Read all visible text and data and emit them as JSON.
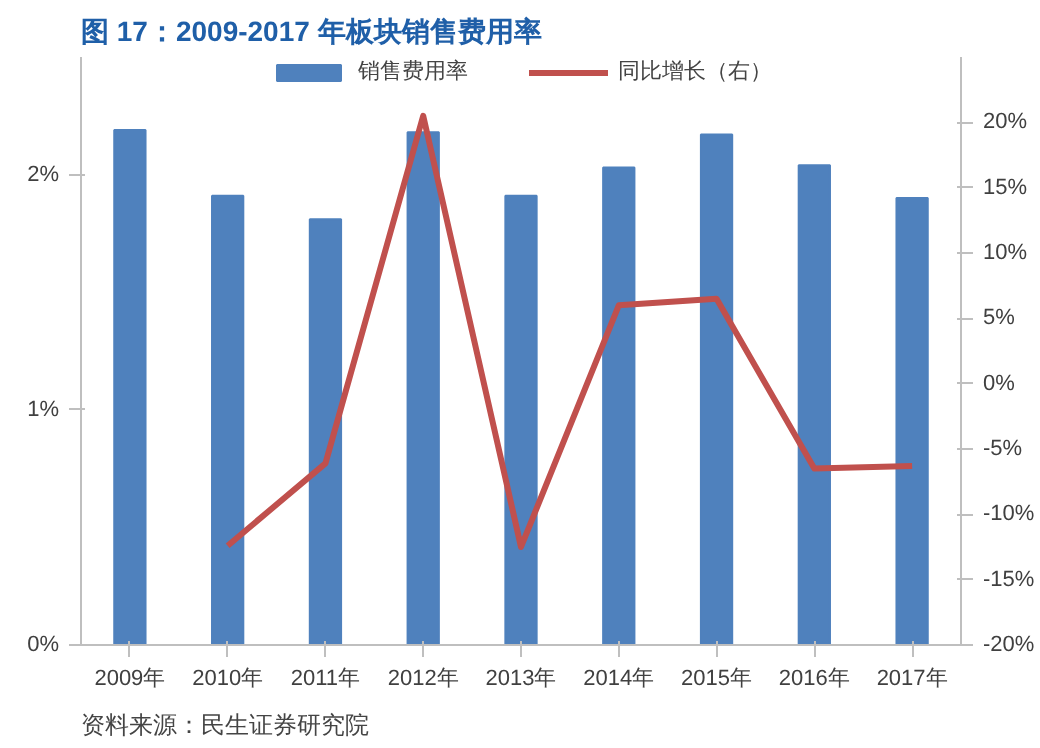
{
  "chart_data": {
    "type": "bar",
    "title": "图 17：2009-2017 年板块销售费用率",
    "categories": [
      "2009年",
      "2010年",
      "2011年",
      "2012年",
      "2013年",
      "2014年",
      "2015年",
      "2016年",
      "2017年"
    ],
    "series": [
      {
        "name": "销售费用率",
        "color": "#4f81bd",
        "values": [
          2.19,
          1.91,
          1.81,
          2.18,
          1.91,
          2.03,
          2.17,
          2.04,
          1.9
        ]
      },
      {
        "name": "同比增长（右）",
        "type": "line",
        "axis": "y2",
        "color": "#c0504d",
        "values": [
          null,
          -12.4,
          -6.1,
          20.5,
          -12.5,
          6.0,
          6.5,
          -6.5,
          -6.3
        ]
      }
    ],
    "ylim": [
      0,
      2.5
    ],
    "yticks": [
      {
        "value": 0,
        "label": "0%"
      },
      {
        "value": 1,
        "label": "1%"
      },
      {
        "value": 2,
        "label": "2%"
      }
    ],
    "y2lim": [
      -20,
      25
    ],
    "y2ticks": [
      {
        "value": -20,
        "label": "-20%"
      },
      {
        "value": -15,
        "label": "-15%"
      },
      {
        "value": -10,
        "label": "-10%"
      },
      {
        "value": -5,
        "label": "-5%"
      },
      {
        "value": 0,
        "label": "0%"
      },
      {
        "value": 5,
        "label": "5%"
      },
      {
        "value": 10,
        "label": "10%"
      },
      {
        "value": 15,
        "label": "15%"
      },
      {
        "value": 20,
        "label": "20%"
      }
    ],
    "legend": "top",
    "grid": false,
    "marker": "none",
    "line_style": "solid",
    "annotations": [
      "资料来源：民生证券研究院"
    ]
  }
}
